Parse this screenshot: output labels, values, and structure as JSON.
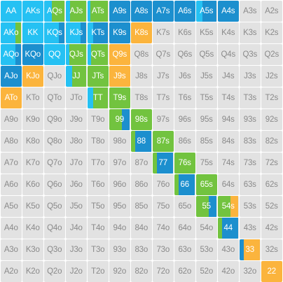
{
  "colors": {
    "empty": "#e2e2e2",
    "cyan": "#25c1f3",
    "blue": "#1c8fce",
    "green": "#72c33f",
    "orange": "#fbb43d",
    "label_on": "#ffffff",
    "label_off": "#8a8a8a"
  },
  "rows": [
    [
      {
        "label": "AA",
        "segs": [
          [
            "cyan",
            1
          ]
        ]
      },
      {
        "label": "AKs",
        "segs": [
          [
            "cyan",
            1
          ]
        ]
      },
      {
        "label": "AQs",
        "segs": [
          [
            "cyan",
            0.38
          ],
          [
            "green",
            0.62
          ]
        ]
      },
      {
        "label": "AJs",
        "segs": [
          [
            "cyan",
            0.2
          ],
          [
            "green",
            0.8
          ]
        ]
      },
      {
        "label": "ATs",
        "segs": [
          [
            "cyan",
            0.14
          ],
          [
            "green",
            0.86
          ]
        ]
      },
      {
        "label": "A9s",
        "segs": [
          [
            "blue",
            1
          ]
        ]
      },
      {
        "label": "A8s",
        "segs": [
          [
            "blue",
            1
          ]
        ]
      },
      {
        "label": "A7s",
        "segs": [
          [
            "blue",
            1
          ]
        ]
      },
      {
        "label": "A6s",
        "segs": [
          [
            "blue",
            1
          ]
        ]
      },
      {
        "label": "A5s",
        "segs": [
          [
            "cyan",
            0.3
          ],
          [
            "blue",
            0.7
          ]
        ]
      },
      {
        "label": "A4s",
        "segs": [
          [
            "blue",
            1
          ]
        ]
      },
      {
        "label": "A3s",
        "segs": []
      },
      {
        "label": "A2s",
        "segs": []
      }
    ],
    [
      {
        "label": "AKo",
        "segs": [
          [
            "cyan",
            0.7
          ],
          [
            "green",
            0.3
          ]
        ]
      },
      {
        "label": "KK",
        "segs": [
          [
            "cyan",
            1
          ]
        ]
      },
      {
        "label": "KQs",
        "segs": [
          [
            "cyan",
            0.72
          ],
          [
            "blue",
            0.28
          ]
        ]
      },
      {
        "label": "KJs",
        "segs": [
          [
            "cyan",
            0.72
          ],
          [
            "blue",
            0.28
          ]
        ]
      },
      {
        "label": "KTs",
        "segs": [
          [
            "cyan",
            0.28
          ],
          [
            "blue",
            0.72
          ]
        ]
      },
      {
        "label": "K9s",
        "segs": [
          [
            "blue",
            1
          ]
        ]
      },
      {
        "label": "K8s",
        "segs": [
          [
            "orange",
            1
          ]
        ]
      },
      {
        "label": "K7s",
        "segs": []
      },
      {
        "label": "K6s",
        "segs": []
      },
      {
        "label": "K5s",
        "segs": []
      },
      {
        "label": "K4s",
        "segs": []
      },
      {
        "label": "K3s",
        "segs": []
      },
      {
        "label": "K2s",
        "segs": []
      }
    ],
    [
      {
        "label": "AQo",
        "segs": [
          [
            "cyan",
            0.72
          ],
          [
            "blue",
            0.28
          ]
        ]
      },
      {
        "label": "KQo",
        "segs": [
          [
            "blue",
            1
          ]
        ]
      },
      {
        "label": "QQ",
        "segs": [
          [
            "cyan",
            1
          ]
        ]
      },
      {
        "label": "QJs",
        "segs": [
          [
            "cyan",
            0.18
          ],
          [
            "green",
            0.82
          ]
        ]
      },
      {
        "label": "QTs",
        "segs": [
          [
            "cyan",
            0.18
          ],
          [
            "green",
            0.82
          ]
        ]
      },
      {
        "label": "Q9s",
        "segs": [
          [
            "orange",
            1
          ]
        ]
      },
      {
        "label": "Q8s",
        "segs": []
      },
      {
        "label": "Q7s",
        "segs": []
      },
      {
        "label": "Q6s",
        "segs": []
      },
      {
        "label": "Q5s",
        "segs": []
      },
      {
        "label": "Q4s",
        "segs": []
      },
      {
        "label": "Q3s",
        "segs": []
      },
      {
        "label": "Q2s",
        "segs": []
      }
    ],
    [
      {
        "label": "AJo",
        "segs": [
          [
            "blue",
            1
          ]
        ]
      },
      {
        "label": "KJo",
        "segs": [
          [
            "orange",
            1
          ]
        ]
      },
      {
        "label": "QJo",
        "segs": []
      },
      {
        "label": "JJ",
        "segs": [
          [
            "cyan",
            0.3
          ],
          [
            "green",
            0.7
          ]
        ]
      },
      {
        "label": "JTs",
        "segs": [
          [
            "green",
            1
          ]
        ]
      },
      {
        "label": "J9s",
        "segs": [
          [
            "orange",
            1
          ]
        ]
      },
      {
        "label": "J8s",
        "segs": []
      },
      {
        "label": "J7s",
        "segs": []
      },
      {
        "label": "J6s",
        "segs": []
      },
      {
        "label": "J5s",
        "segs": []
      },
      {
        "label": "J4s",
        "segs": []
      },
      {
        "label": "J3s",
        "segs": []
      },
      {
        "label": "J2s",
        "segs": []
      }
    ],
    [
      {
        "label": "ATo",
        "segs": [
          [
            "orange",
            1
          ]
        ]
      },
      {
        "label": "KTo",
        "segs": []
      },
      {
        "label": "QTo",
        "segs": []
      },
      {
        "label": "JTo",
        "segs": []
      },
      {
        "label": "TT",
        "segs": [
          [
            "cyan",
            0.28
          ],
          [
            "green",
            0.72
          ]
        ]
      },
      {
        "label": "T9s",
        "segs": [
          [
            "green",
            1
          ]
        ]
      },
      {
        "label": "T8s",
        "segs": []
      },
      {
        "label": "T7s",
        "segs": []
      },
      {
        "label": "T6s",
        "segs": []
      },
      {
        "label": "T5s",
        "segs": []
      },
      {
        "label": "T4s",
        "segs": []
      },
      {
        "label": "T3s",
        "segs": []
      },
      {
        "label": "T2s",
        "segs": []
      }
    ],
    [
      {
        "label": "A9o",
        "segs": []
      },
      {
        "label": "K9o",
        "segs": []
      },
      {
        "label": "Q9o",
        "segs": []
      },
      {
        "label": "J9o",
        "segs": []
      },
      {
        "label": "T9o",
        "segs": []
      },
      {
        "label": "99",
        "segs": [
          [
            "green",
            0.6
          ],
          [
            "blue",
            0.4
          ]
        ]
      },
      {
        "label": "98s",
        "segs": [
          [
            "green",
            1
          ]
        ]
      },
      {
        "label": "97s",
        "segs": []
      },
      {
        "label": "96s",
        "segs": []
      },
      {
        "label": "95s",
        "segs": []
      },
      {
        "label": "94s",
        "segs": []
      },
      {
        "label": "93s",
        "segs": []
      },
      {
        "label": "92s",
        "segs": []
      }
    ],
    [
      {
        "label": "A8o",
        "segs": []
      },
      {
        "label": "K8o",
        "segs": []
      },
      {
        "label": "Q8o",
        "segs": []
      },
      {
        "label": "J8o",
        "segs": []
      },
      {
        "label": "T8o",
        "segs": []
      },
      {
        "label": "98o",
        "segs": []
      },
      {
        "label": "88",
        "segs": [
          [
            "green",
            0.2
          ],
          [
            "blue",
            0.8
          ]
        ]
      },
      {
        "label": "87s",
        "segs": [
          [
            "green",
            1
          ]
        ]
      },
      {
        "label": "86s",
        "segs": []
      },
      {
        "label": "85s",
        "segs": []
      },
      {
        "label": "84s",
        "segs": []
      },
      {
        "label": "83s",
        "segs": []
      },
      {
        "label": "82s",
        "segs": []
      }
    ],
    [
      {
        "label": "A7o",
        "segs": []
      },
      {
        "label": "K7o",
        "segs": []
      },
      {
        "label": "Q7o",
        "segs": []
      },
      {
        "label": "J7o",
        "segs": []
      },
      {
        "label": "T7o",
        "segs": []
      },
      {
        "label": "97o",
        "segs": []
      },
      {
        "label": "87o",
        "segs": []
      },
      {
        "label": "77",
        "segs": [
          [
            "green",
            0.2
          ],
          [
            "blue",
            0.8
          ]
        ]
      },
      {
        "label": "76s",
        "segs": [
          [
            "green",
            1
          ]
        ]
      },
      {
        "label": "75s",
        "segs": []
      },
      {
        "label": "74s",
        "segs": []
      },
      {
        "label": "73s",
        "segs": []
      },
      {
        "label": "72s",
        "segs": []
      }
    ],
    [
      {
        "label": "A6o",
        "segs": []
      },
      {
        "label": "K6o",
        "segs": []
      },
      {
        "label": "Q6o",
        "segs": []
      },
      {
        "label": "J6o",
        "segs": []
      },
      {
        "label": "T6o",
        "segs": []
      },
      {
        "label": "96o",
        "segs": []
      },
      {
        "label": "86o",
        "segs": []
      },
      {
        "label": "76o",
        "segs": []
      },
      {
        "label": "66",
        "segs": [
          [
            "green",
            0.2
          ],
          [
            "blue",
            0.8
          ]
        ]
      },
      {
        "label": "65s",
        "segs": [
          [
            "green",
            1
          ]
        ]
      },
      {
        "label": "64s",
        "segs": []
      },
      {
        "label": "63s",
        "segs": []
      },
      {
        "label": "62s",
        "segs": []
      }
    ],
    [
      {
        "label": "A5o",
        "segs": []
      },
      {
        "label": "K5o",
        "segs": []
      },
      {
        "label": "Q5o",
        "segs": []
      },
      {
        "label": "J5o",
        "segs": []
      },
      {
        "label": "T5o",
        "segs": []
      },
      {
        "label": "95o",
        "segs": []
      },
      {
        "label": "85o",
        "segs": []
      },
      {
        "label": "75o",
        "segs": []
      },
      {
        "label": "65o",
        "segs": []
      },
      {
        "label": "55",
        "segs": [
          [
            "green",
            0.62
          ],
          [
            "blue",
            0.38
          ]
        ]
      },
      {
        "label": "54s",
        "segs": [
          [
            "green",
            0.6
          ],
          [
            "orange",
            0.4
          ]
        ]
      },
      {
        "label": "53s",
        "segs": []
      },
      {
        "label": "52s",
        "segs": []
      }
    ],
    [
      {
        "label": "A4o",
        "segs": []
      },
      {
        "label": "K4o",
        "segs": []
      },
      {
        "label": "Q4o",
        "segs": []
      },
      {
        "label": "J4o",
        "segs": []
      },
      {
        "label": "T4o",
        "segs": []
      },
      {
        "label": "94o",
        "segs": []
      },
      {
        "label": "84o",
        "segs": []
      },
      {
        "label": "74o",
        "segs": []
      },
      {
        "label": "64o",
        "segs": []
      },
      {
        "label": "54o",
        "segs": []
      },
      {
        "label": "44",
        "segs": [
          [
            "green",
            0.2
          ],
          [
            "blue",
            0.8
          ]
        ]
      },
      {
        "label": "43s",
        "segs": []
      },
      {
        "label": "42s",
        "segs": []
      }
    ],
    [
      {
        "label": "A3o",
        "segs": []
      },
      {
        "label": "K3o",
        "segs": []
      },
      {
        "label": "Q3o",
        "segs": []
      },
      {
        "label": "J3o",
        "segs": []
      },
      {
        "label": "T3o",
        "segs": []
      },
      {
        "label": "93o",
        "segs": []
      },
      {
        "label": "83o",
        "segs": []
      },
      {
        "label": "73o",
        "segs": []
      },
      {
        "label": "63o",
        "segs": []
      },
      {
        "label": "53o",
        "segs": []
      },
      {
        "label": "43o",
        "segs": []
      },
      {
        "label": "33",
        "segs": [
          [
            "blue",
            0.2
          ],
          [
            "orange",
            0.8
          ]
        ]
      },
      {
        "label": "32s",
        "segs": []
      }
    ],
    [
      {
        "label": "A2o",
        "segs": []
      },
      {
        "label": "K2o",
        "segs": []
      },
      {
        "label": "Q2o",
        "segs": []
      },
      {
        "label": "J2o",
        "segs": []
      },
      {
        "label": "T2o",
        "segs": []
      },
      {
        "label": "92o",
        "segs": []
      },
      {
        "label": "82o",
        "segs": []
      },
      {
        "label": "72o",
        "segs": []
      },
      {
        "label": "62o",
        "segs": []
      },
      {
        "label": "52o",
        "segs": []
      },
      {
        "label": "42o",
        "segs": []
      },
      {
        "label": "32o",
        "segs": []
      },
      {
        "label": "22",
        "segs": [
          [
            "orange",
            1
          ]
        ]
      }
    ]
  ]
}
